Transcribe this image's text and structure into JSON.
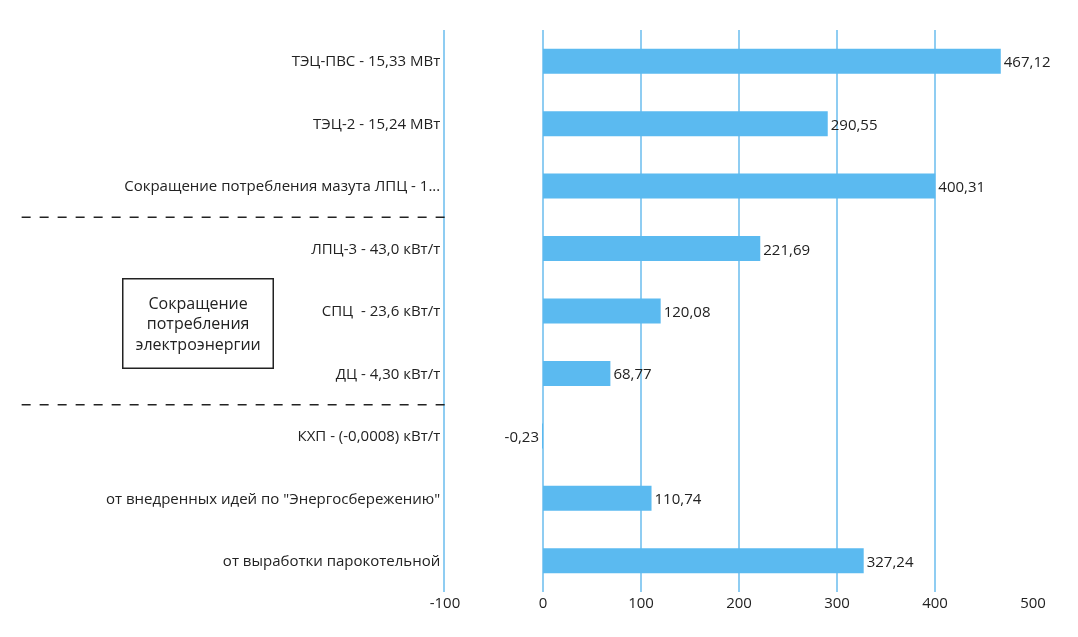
{
  "chart_data": {
    "type": "bar",
    "orientation": "horizontal",
    "categories": [
      "ТЭЦ-ПВС - 15,33 МВт",
      "ТЭЦ-2 - 15,24 МВт",
      "Сокращение потребления мазута ЛПЦ - 1...",
      "ЛПЦ-3 - 43,0 кВт/т",
      "СПЦ  - 23,6 кВт/т",
      "ДЦ - 4,30 кВт/т",
      "КХП - (-0,0008) кВт/т",
      "от внедренных идей по \"Энергосбережению\"",
      "от выработки парокотельной"
    ],
    "values": [
      467.12,
      290.55,
      400.31,
      221.69,
      120.08,
      68.77,
      -0.23,
      110.74,
      327.24
    ],
    "value_labels": [
      "467,12",
      "290,55",
      "400,31",
      "221,69",
      "120,08",
      "68,77",
      "-0,23",
      "110,74",
      "327,24"
    ],
    "color": "#5bbaf0",
    "xlim": [
      -100,
      500
    ],
    "xticks": [
      -100,
      0,
      100,
      200,
      300,
      400,
      500
    ],
    "grid": "x",
    "legend": false,
    "annotations": [
      "Сокращение\nпотребления\nэлектроэнергии"
    ]
  }
}
